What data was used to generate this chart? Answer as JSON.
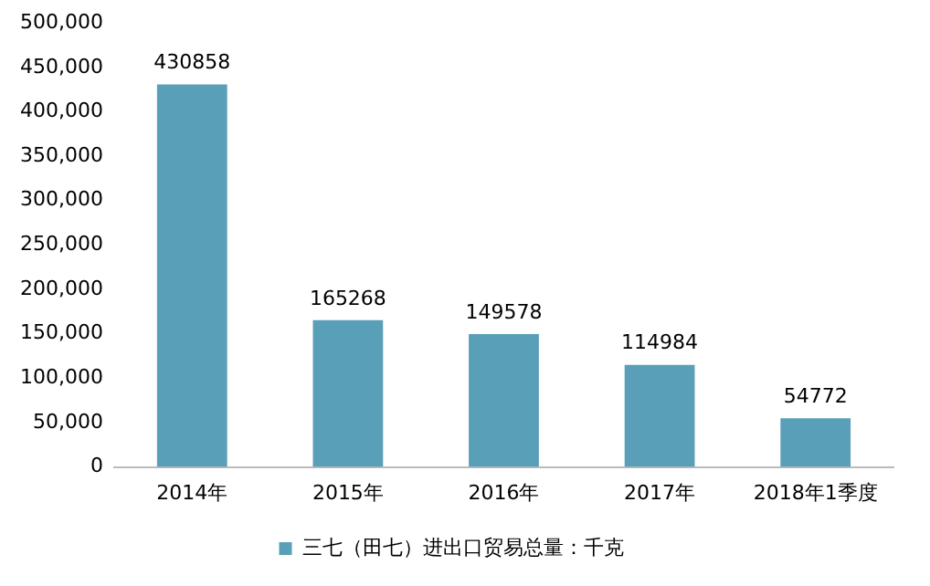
{
  "chart_data": {
    "type": "bar",
    "categories": [
      "2014年",
      "2015年",
      "2016年",
      "2017年",
      "2018年1季度"
    ],
    "series": [
      {
        "name": "三七（田七）进出口贸易总量：千克",
        "color": "#5a9fb8",
        "values": [
          430858,
          165268,
          149578,
          114984,
          54772
        ]
      }
    ],
    "ylim": [
      0,
      500000
    ],
    "yticks": [
      {
        "value": 0,
        "label": "0"
      },
      {
        "value": 50000,
        "label": "50,000"
      },
      {
        "value": 100000,
        "label": "100,000"
      },
      {
        "value": 150000,
        "label": "150,000"
      },
      {
        "value": 200000,
        "label": "200,000"
      },
      {
        "value": 250000,
        "label": "250,000"
      },
      {
        "value": 300000,
        "label": "300,000"
      },
      {
        "value": 350000,
        "label": "350,000"
      },
      {
        "value": 400000,
        "label": "400,000"
      },
      {
        "value": 450000,
        "label": "450,000"
      },
      {
        "value": 500000,
        "label": "500,000"
      }
    ],
    "grid": false,
    "legend": "bottom",
    "data_labels": true
  }
}
